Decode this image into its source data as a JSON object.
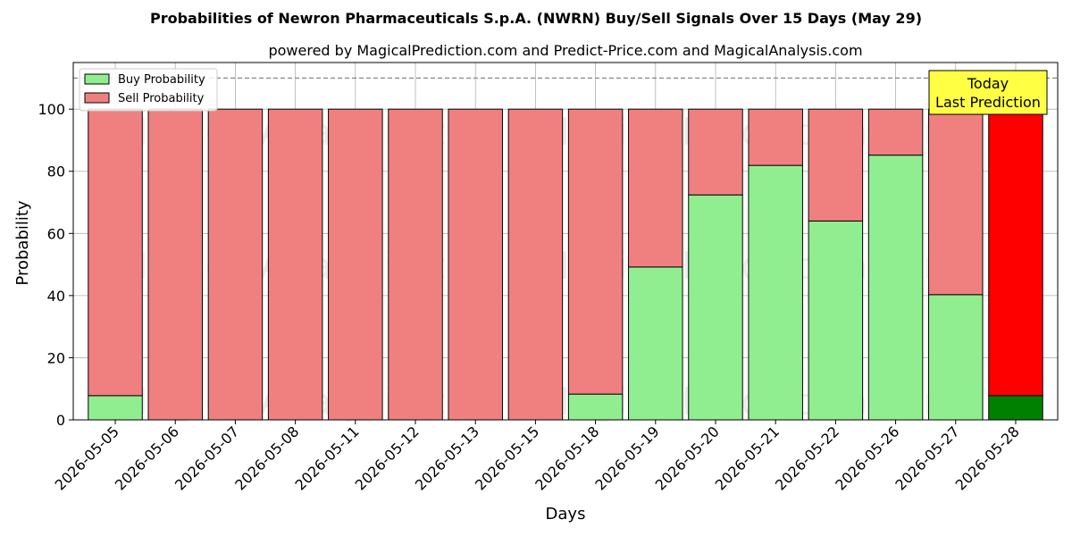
{
  "chart_data": {
    "type": "bar",
    "stacked": true,
    "title": "Probabilities of Newron Pharmaceuticals S.p.A. (NWRN) Buy/Sell Signals Over 15 Days (May 29)",
    "subtitle": "powered by MagicalPrediction.com and Predict-Price.com and MagicalAnalysis.com",
    "xlabel": "Days",
    "ylabel": "Probability",
    "ylim": [
      0,
      115
    ],
    "yticks": [
      0,
      20,
      40,
      60,
      80,
      100
    ],
    "grid": true,
    "legend_position": "top-left",
    "reference_line": 110,
    "categories": [
      "2026-05-05",
      "2026-05-06",
      "2026-05-07",
      "2026-05-08",
      "2026-05-11",
      "2026-05-12",
      "2026-05-13",
      "2026-05-15",
      "2026-05-18",
      "2026-05-19",
      "2026-05-20",
      "2026-05-21",
      "2026-05-22",
      "2026-05-26",
      "2026-05-27",
      "2026-05-28"
    ],
    "series": [
      {
        "name": "Buy Probability",
        "color": "#90ee90",
        "values": [
          7.8,
          0,
          0,
          0,
          0,
          0,
          0,
          0,
          8.3,
          49.2,
          72.4,
          81.9,
          64.0,
          85.2,
          40.3,
          7.8
        ]
      },
      {
        "name": "Sell Probability",
        "color": "#f08080",
        "values": [
          92.2,
          100,
          100,
          100,
          100,
          100,
          100,
          100,
          91.7,
          50.8,
          27.6,
          18.1,
          36.0,
          14.8,
          59.7,
          92.2
        ]
      }
    ],
    "highlight": {
      "index": 15,
      "buy_color": "#008000",
      "sell_color": "#ff0000"
    },
    "annotation": {
      "lines": [
        "Today",
        "Last Prediction"
      ],
      "background": "#ffff44"
    },
    "watermarks": [
      "MagicalAnalysis.com",
      "MagicalPrediction.com"
    ]
  }
}
